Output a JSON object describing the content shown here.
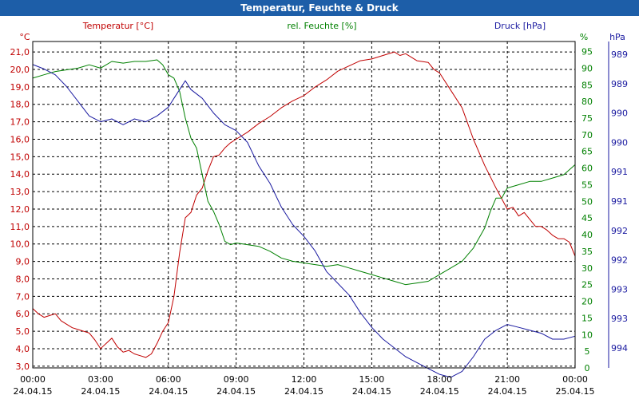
{
  "window": {
    "title": "Temperatur, Feuchte & Druck"
  },
  "colors": {
    "temperature": "#c00000",
    "humidity": "#008000",
    "pressure": "#1a1aa0",
    "grid": "#000000",
    "title_bar": "#1d5ea8"
  },
  "chart_data": {
    "type": "line",
    "title": "Temperatur, Feuchte & Druck",
    "grid": true,
    "x_ticks": [
      {
        "time": "00:00",
        "date": "24.04.15"
      },
      {
        "time": "03:00",
        "date": "24.04.15"
      },
      {
        "time": "06:00",
        "date": "24.04.15"
      },
      {
        "time": "09:00",
        "date": "24.04.15"
      },
      {
        "time": "12:00",
        "date": "24.04.15"
      },
      {
        "time": "15:00",
        "date": "24.04.15"
      },
      {
        "time": "18:00",
        "date": "24.04.15"
      },
      {
        "time": "21:00",
        "date": "24.04.15"
      },
      {
        "time": "00:00",
        "date": "25.04.15"
      }
    ],
    "axes": {
      "temperature": {
        "label": "Temperatur [°C]",
        "unit": "°C",
        "ylim": [
          2.9,
          21.6
        ],
        "ticks": [
          "3,0",
          "4,0",
          "5,0",
          "6,0",
          "7,0",
          "8,0",
          "9,0",
          "10,0",
          "11,0",
          "12,0",
          "13,0",
          "14,0",
          "15,0",
          "16,0",
          "17,0",
          "18,0",
          "19,0",
          "20,0",
          "21,0"
        ]
      },
      "humidity": {
        "label": "rel. Feuchte [%]",
        "unit": "%",
        "ylim": [
          0,
          98
        ],
        "ticks": [
          "0",
          "5",
          "10",
          "15",
          "20",
          "25",
          "30",
          "35",
          "40",
          "45",
          "50",
          "55",
          "60",
          "65",
          "70",
          "75",
          "80",
          "85",
          "90",
          "95"
        ]
      },
      "pressure": {
        "label": "Druck [hPa]",
        "unit": "hPa",
        "ticks": [
          "989",
          "989",
          "990",
          "990",
          "991",
          "991",
          "992",
          "992",
          "993",
          "993",
          "994"
        ]
      }
    },
    "series": [
      {
        "name": "Temperatur [°C]",
        "axis": "temperature",
        "x": [
          0,
          0.25,
          0.5,
          0.75,
          1,
          1.25,
          1.5,
          1.75,
          2,
          2.25,
          2.5,
          2.75,
          3,
          3.25,
          3.5,
          3.75,
          4,
          4.25,
          4.5,
          4.75,
          5,
          5.25,
          5.5,
          5.75,
          6,
          6.25,
          6.5,
          6.75,
          7,
          7.25,
          7.5,
          7.75,
          8,
          8.25,
          8.5,
          8.75,
          9,
          9.5,
          10,
          10.5,
          11,
          11.5,
          12,
          12.5,
          13,
          13.5,
          14,
          14.5,
          15,
          15.5,
          16,
          16.25,
          16.5,
          17,
          17.5,
          17.75,
          18,
          18.5,
          19,
          19.5,
          20,
          20.5,
          21,
          21.25,
          21.5,
          21.75,
          22,
          22.25,
          22.5,
          22.75,
          23,
          23.25,
          23.5,
          23.75,
          24
        ],
        "y": [
          6.3,
          6.0,
          5.8,
          5.9,
          6.0,
          5.6,
          5.4,
          5.2,
          5.1,
          5.0,
          4.9,
          4.5,
          4.0,
          4.3,
          4.6,
          4.1,
          3.8,
          3.9,
          3.7,
          3.6,
          3.5,
          3.7,
          4.3,
          5.0,
          5.5,
          7.0,
          9.5,
          11.5,
          11.8,
          12.8,
          13.2,
          14.2,
          15.0,
          15.1,
          15.5,
          15.8,
          16.0,
          16.4,
          16.9,
          17.3,
          17.8,
          18.2,
          18.5,
          19.0,
          19.4,
          19.9,
          20.2,
          20.5,
          20.6,
          20.8,
          21.0,
          20.8,
          20.9,
          20.5,
          20.4,
          20.0,
          19.8,
          18.8,
          17.8,
          16.0,
          14.5,
          13.2,
          12.0,
          12.1,
          11.6,
          11.8,
          11.4,
          11.0,
          11.0,
          10.8,
          10.5,
          10.3,
          10.3,
          10.1,
          9.3
        ]
      },
      {
        "name": "rel. Feuchte [%]",
        "axis": "humidity",
        "x": [
          0,
          0.5,
          1,
          1.5,
          2,
          2.5,
          3,
          3.5,
          4,
          4.5,
          5,
          5.5,
          5.75,
          6,
          6.25,
          6.5,
          6.75,
          7,
          7.25,
          7.5,
          7.75,
          8,
          8.25,
          8.5,
          8.75,
          9,
          9.5,
          10,
          10.5,
          11,
          11.5,
          12,
          12.5,
          13,
          13.5,
          14,
          14.5,
          15,
          15.5,
          16,
          16.5,
          17,
          17.5,
          18,
          18.5,
          19,
          19.5,
          20,
          20.25,
          20.5,
          20.75,
          21,
          21.5,
          22,
          22.5,
          23,
          23.5,
          24
        ],
        "y": [
          87,
          88,
          89,
          89.5,
          90,
          91,
          90,
          92,
          91.5,
          92,
          92,
          92.5,
          91,
          88,
          87,
          83,
          75,
          69,
          66,
          58,
          50,
          47,
          43,
          38,
          37,
          37.5,
          37,
          36.5,
          35,
          33,
          32,
          31.5,
          31,
          30.5,
          31,
          30,
          29,
          28,
          27,
          26,
          25,
          25.5,
          26,
          28,
          30,
          32,
          36,
          42,
          47,
          51,
          51,
          54,
          55,
          56,
          56,
          57,
          58,
          61
        ]
      },
      {
        "name": "Druck [hPa]",
        "axis": "pressure",
        "x": [
          0,
          0.5,
          1,
          1.5,
          2,
          2.5,
          3,
          3.5,
          4,
          4.5,
          5,
          5.5,
          6,
          6.25,
          6.5,
          6.75,
          7,
          7.5,
          8,
          8.5,
          9,
          9.5,
          10,
          10.5,
          11,
          11.5,
          12,
          12.5,
          13,
          13.5,
          14,
          14.5,
          15,
          15.5,
          16,
          16.5,
          17,
          17.5,
          18,
          18.5,
          19,
          19.5,
          20,
          20.5,
          21,
          21.5,
          22,
          22.5,
          23,
          23.5,
          24
        ],
        "y": [
          0.965,
          0.95,
          0.93,
          0.89,
          0.84,
          0.79,
          0.77,
          0.78,
          0.76,
          0.78,
          0.77,
          0.79,
          0.82,
          0.85,
          0.88,
          0.91,
          0.88,
          0.85,
          0.8,
          0.76,
          0.74,
          0.7,
          0.62,
          0.56,
          0.48,
          0.42,
          0.38,
          0.33,
          0.26,
          0.22,
          0.18,
          0.12,
          0.07,
          0.03,
          0.0,
          -0.03,
          -0.05,
          -0.07,
          -0.09,
          -0.1,
          -0.08,
          -0.03,
          0.03,
          0.06,
          0.08,
          0.07,
          0.06,
          0.05,
          0.03,
          0.03,
          0.04
        ]
      }
    ]
  }
}
